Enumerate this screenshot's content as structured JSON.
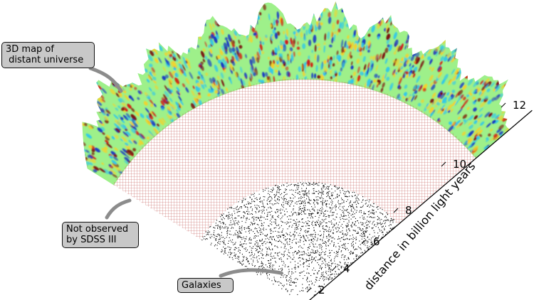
{
  "labels": {
    "map": [
      "3D map of",
      " distant universe"
    ],
    "not_observed": [
      "Not observed",
      "by SDSS III"
    ],
    "galaxies": "Galaxies"
  },
  "axis": {
    "title": "distance in billion light years",
    "ticks": [
      "2",
      "4",
      "6",
      "8",
      "10",
      "12"
    ]
  },
  "colors": {
    "map_base": "#9ef08a",
    "map_cyan": "#31c8e8",
    "map_blue": "#1537c4",
    "map_yellow": "#f4d22a",
    "map_red": "#d11d12",
    "map_darkred": "#7a0a08",
    "grid_line": "#c0504d",
    "galaxy_dot": "#000000",
    "callout_fill": "#c8c8c8",
    "pointer": "#8c8c8c"
  }
}
